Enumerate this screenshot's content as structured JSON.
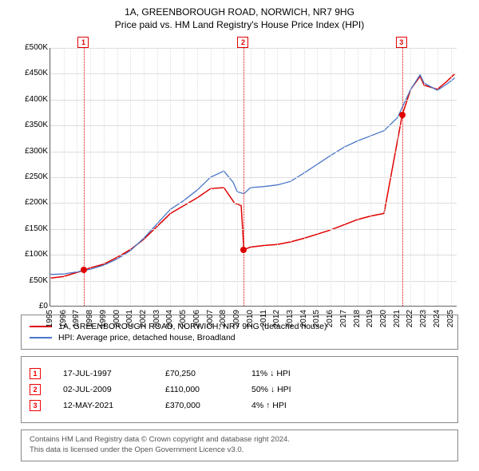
{
  "title": "1A, GREENBOROUGH ROAD, NORWICH, NR7 9HG",
  "subtitle": "Price paid vs. HM Land Registry's House Price Index (HPI)",
  "chart": {
    "type": "line",
    "background_color": "#ffffff",
    "grid_color": "#dddddd",
    "axis_color": "#666666",
    "x": {
      "min": 1995,
      "max": 2025.5,
      "ticks": [
        1995,
        1996,
        1997,
        1998,
        1999,
        2000,
        2001,
        2002,
        2003,
        2004,
        2005,
        2006,
        2007,
        2008,
        2009,
        2010,
        2011,
        2012,
        2013,
        2014,
        2015,
        2016,
        2017,
        2018,
        2019,
        2020,
        2021,
        2022,
        2023,
        2024,
        2025
      ]
    },
    "y": {
      "min": 0,
      "max": 500000,
      "ticks": [
        0,
        50000,
        100000,
        150000,
        200000,
        250000,
        300000,
        350000,
        400000,
        450000,
        500000
      ],
      "labels": [
        "£0",
        "£50K",
        "£100K",
        "£150K",
        "£200K",
        "£250K",
        "£300K",
        "£350K",
        "£400K",
        "£450K",
        "£500K"
      ],
      "label_fontsize": 10
    },
    "series": [
      {
        "name": "price_paid",
        "color": "#e10000",
        "width": 1.5,
        "points": [
          [
            1995,
            55000
          ],
          [
            1996,
            58000
          ],
          [
            1997.54,
            70250
          ],
          [
            1998,
            75000
          ],
          [
            1999,
            82000
          ],
          [
            2000,
            95000
          ],
          [
            2001,
            110000
          ],
          [
            2002,
            130000
          ],
          [
            2003,
            155000
          ],
          [
            2004,
            180000
          ],
          [
            2005,
            195000
          ],
          [
            2006,
            210000
          ],
          [
            2007,
            228000
          ],
          [
            2008,
            230000
          ],
          [
            2008.8,
            200000
          ],
          [
            2009.3,
            195000
          ],
          [
            2009.5,
            110000
          ],
          [
            2010,
            115000
          ],
          [
            2011,
            118000
          ],
          [
            2012,
            120000
          ],
          [
            2013,
            125000
          ],
          [
            2014,
            132000
          ],
          [
            2015,
            140000
          ],
          [
            2016,
            148000
          ],
          [
            2017,
            158000
          ],
          [
            2018,
            168000
          ],
          [
            2019,
            175000
          ],
          [
            2020,
            180000
          ],
          [
            2021.36,
            370000
          ],
          [
            2022,
            420000
          ],
          [
            2022.7,
            445000
          ],
          [
            2023,
            428000
          ],
          [
            2024,
            420000
          ],
          [
            2024.7,
            435000
          ],
          [
            2025.3,
            450000
          ]
        ]
      },
      {
        "name": "hpi",
        "color": "#4a76c7",
        "width": 1.3,
        "points": [
          [
            1995,
            62000
          ],
          [
            1996,
            63000
          ],
          [
            1997,
            67000
          ],
          [
            1998,
            72000
          ],
          [
            1999,
            80000
          ],
          [
            2000,
            92000
          ],
          [
            2001,
            108000
          ],
          [
            2002,
            132000
          ],
          [
            2003,
            160000
          ],
          [
            2004,
            188000
          ],
          [
            2005,
            205000
          ],
          [
            2006,
            225000
          ],
          [
            2007,
            250000
          ],
          [
            2008,
            262000
          ],
          [
            2008.7,
            240000
          ],
          [
            2009,
            222000
          ],
          [
            2009.5,
            218000
          ],
          [
            2010,
            230000
          ],
          [
            2011,
            232000
          ],
          [
            2012,
            235000
          ],
          [
            2013,
            242000
          ],
          [
            2014,
            258000
          ],
          [
            2015,
            275000
          ],
          [
            2016,
            292000
          ],
          [
            2017,
            308000
          ],
          [
            2018,
            320000
          ],
          [
            2019,
            330000
          ],
          [
            2020,
            340000
          ],
          [
            2021,
            365000
          ],
          [
            2022,
            420000
          ],
          [
            2022.7,
            448000
          ],
          [
            2023,
            432000
          ],
          [
            2024,
            418000
          ],
          [
            2024.7,
            430000
          ],
          [
            2025.3,
            442000
          ]
        ]
      }
    ],
    "sale_markers": [
      {
        "n": "1",
        "year": 1997.54,
        "price": 70250,
        "color": "#e10000"
      },
      {
        "n": "2",
        "year": 2009.5,
        "price": 110000,
        "color": "#e10000"
      },
      {
        "n": "3",
        "year": 2021.36,
        "price": 370000,
        "color": "#e10000"
      }
    ]
  },
  "legend": {
    "series1": {
      "color": "#e10000",
      "label": "1A, GREENBOROUGH ROAD, NORWICH, NR7 9HG (detached house)"
    },
    "series2": {
      "color": "#4a76c7",
      "label": "HPI: Average price, detached house, Broadland"
    }
  },
  "events": [
    {
      "n": "1",
      "date": "17-JUL-1997",
      "price": "£70,250",
      "delta": "11% ↓ HPI"
    },
    {
      "n": "2",
      "date": "02-JUL-2009",
      "price": "£110,000",
      "delta": "50% ↓ HPI"
    },
    {
      "n": "3",
      "date": "12-MAY-2021",
      "price": "£370,000",
      "delta": "4% ↑ HPI"
    }
  ],
  "footer": {
    "line1": "Contains HM Land Registry data © Crown copyright and database right 2024.",
    "line2": "This data is licensed under the Open Government Licence v3.0."
  }
}
